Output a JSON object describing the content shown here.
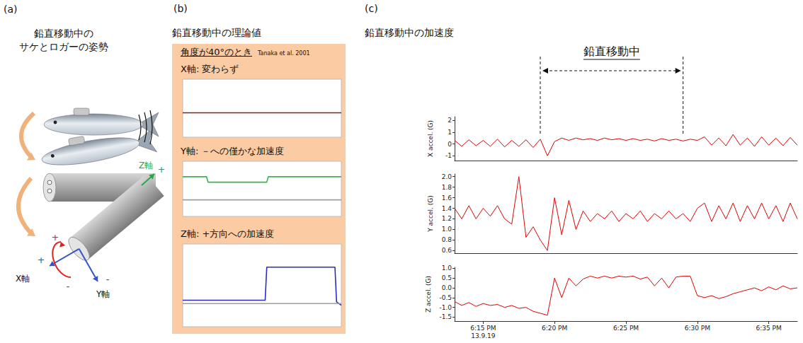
{
  "panels": {
    "a": {
      "letter": "(a)",
      "title_lines": [
        "鉛直移動中の",
        "サケとロガーの姿勢"
      ],
      "axis_labels": [
        {
          "text": "X軸",
          "sign": "+"
        },
        {
          "text": "Y軸",
          "sign": "-"
        },
        {
          "text": "Z軸",
          "sign": "+"
        }
      ],
      "rotation_signs": [
        "+",
        "-"
      ]
    },
    "b": {
      "letter": "(b)",
      "title": "鉛直移動中の理論値",
      "condition": "角度が40°のとき",
      "citation": "Tanaka et al. 2001"
    },
    "c": {
      "letter": "(c)"
    }
  },
  "chart_data": [
    {
      "type": "line",
      "title": "X軸: 変わらず",
      "x": [
        0,
        100
      ],
      "xlim": [
        0,
        100
      ],
      "ylim": [
        0,
        100
      ],
      "tick_labels": false,
      "series": [
        {
          "color": "#8b1a1a",
          "values": [
            42,
            42
          ]
        }
      ]
    },
    {
      "type": "line",
      "title": "Y軸: －への僅かな加速度",
      "x": [
        0,
        15,
        16,
        53,
        54,
        100
      ],
      "xlim": [
        0,
        100
      ],
      "ylim": [
        0,
        100
      ],
      "tick_labels": false,
      "series": [
        {
          "color": "#3cb44b",
          "values": [
            72,
            72,
            62,
            62,
            72,
            72
          ]
        },
        {
          "color": "#9e9e9e",
          "values": [
            30,
            30,
            30,
            30,
            30,
            30
          ]
        }
      ]
    },
    {
      "type": "line",
      "title": "Z軸: +方向への加速度",
      "x": [
        0,
        52,
        53,
        96,
        97,
        100
      ],
      "xlim": [
        0,
        100
      ],
      "ylim": [
        0,
        100
      ],
      "tick_labels": false,
      "series": [
        {
          "color": "#2b2bc0",
          "values": [
            32,
            32,
            72,
            72,
            30,
            26
          ]
        },
        {
          "color": "#9e9e9e",
          "values": [
            28,
            28,
            28,
            28,
            28,
            28
          ]
        }
      ]
    },
    {
      "type": "line",
      "title": "鉛直移動中の加速度",
      "x": [
        "2013-09-19 18:13:00",
        "2013-09-19 18:13:30",
        "2013-09-19 18:14:00",
        "2013-09-19 18:14:30",
        "2013-09-19 18:15:00",
        "2013-09-19 18:15:30",
        "2013-09-19 18:16:00",
        "2013-09-19 18:16:30",
        "2013-09-19 18:17:00",
        "2013-09-19 18:17:30",
        "2013-09-19 18:18:00",
        "2013-09-19 18:18:30",
        "2013-09-19 18:19:00",
        "2013-09-19 18:19:30",
        "2013-09-19 18:20:00",
        "2013-09-19 18:20:30",
        "2013-09-19 18:21:00",
        "2013-09-19 18:21:30",
        "2013-09-19 18:22:00",
        "2013-09-19 18:22:30",
        "2013-09-19 18:23:00",
        "2013-09-19 18:23:30",
        "2013-09-19 18:24:00",
        "2013-09-19 18:24:30",
        "2013-09-19 18:25:00",
        "2013-09-19 18:25:30",
        "2013-09-19 18:26:00",
        "2013-09-19 18:26:30",
        "2013-09-19 18:27:00",
        "2013-09-19 18:27:30",
        "2013-09-19 18:28:00",
        "2013-09-19 18:28:30",
        "2013-09-19 18:29:00",
        "2013-09-19 18:29:30",
        "2013-09-19 18:30:00",
        "2013-09-19 18:30:30",
        "2013-09-19 18:31:00",
        "2013-09-19 18:31:30",
        "2013-09-19 18:32:00",
        "2013-09-19 18:32:30",
        "2013-09-19 18:33:00",
        "2013-09-19 18:33:30",
        "2013-09-19 18:34:00",
        "2013-09-19 18:34:30",
        "2013-09-19 18:35:00",
        "2013-09-19 18:35:30",
        "2013-09-19 18:36:00",
        "2013-09-19 18:36:30",
        "2013-09-19 18:37:00"
      ],
      "xlim": [
        "2013-09-19 18:13:00",
        "2013-09-19 18:37:00"
      ],
      "xticks": [
        {
          "value": "2013-09-19 18:15:00",
          "label": "6:15 PM\n13.9.19"
        },
        {
          "value": "2013-09-19 18:20:00",
          "label": "6:20 PM"
        },
        {
          "value": "2013-09-19 18:25:00",
          "label": "6:25 PM"
        },
        {
          "value": "2013-09-19 18:30:00",
          "label": "6:30 PM"
        },
        {
          "value": "2013-09-19 18:35:00",
          "label": "6:35 PM"
        }
      ],
      "annotation": {
        "text": "鉛直移動中",
        "x": [
          "2013-09-19 18:19:00",
          "2013-09-19 18:29:00"
        ]
      },
      "series": [
        {
          "ylabel": "X accel. (G)",
          "color": "#e00000",
          "ylim": [
            -1.4,
            2.3
          ],
          "yticks": [
            -1,
            0,
            1,
            2
          ],
          "values": [
            0.3,
            -0.2,
            0.35,
            -0.15,
            0.3,
            -0.2,
            0.4,
            -0.25,
            0.3,
            -0.2,
            0.35,
            -0.3,
            0.4,
            -1.0,
            0.2,
            0.5,
            0.3,
            0.5,
            0.35,
            0.45,
            0.3,
            0.5,
            0.35,
            0.45,
            0.3,
            0.45,
            0.3,
            0.4,
            0.25,
            0.45,
            0.3,
            0.4,
            0.25,
            0.4,
            0.3,
            0.6,
            -0.1,
            0.5,
            -0.15,
            0.8,
            -0.1,
            0.5,
            -0.2,
            0.6,
            -0.1,
            0.5,
            -0.15,
            0.55,
            -0.1
          ]
        },
        {
          "ylabel": "Y accel. (G)",
          "color": "#e00000",
          "ylim": [
            0.55,
            2.05
          ],
          "yticks": [
            0.6,
            0.8,
            {
              "value": 1,
              "label": "1.0"
            },
            1.2,
            1.4,
            1.6,
            1.8,
            {
              "value": 2,
              "label": "2.0"
            }
          ],
          "values": [
            1.4,
            1.2,
            1.45,
            1.2,
            1.4,
            1.25,
            1.45,
            1.2,
            1.1,
            2.0,
            0.85,
            1.05,
            0.8,
            0.6,
            1.6,
            0.9,
            1.55,
            1.0,
            1.35,
            1.15,
            1.3,
            1.2,
            1.35,
            1.15,
            1.3,
            1.2,
            1.35,
            1.15,
            1.3,
            1.2,
            1.35,
            1.2,
            1.3,
            1.15,
            1.4,
            1.5,
            1.15,
            1.45,
            1.2,
            1.5,
            1.15,
            1.45,
            1.2,
            1.5,
            1.2,
            1.45,
            1.15,
            1.5,
            1.2
          ]
        },
        {
          "ylabel": "Z accel. (G)",
          "color": "#e00000",
          "ylim": [
            -1.7,
            1.05
          ],
          "yticks": [
            {
              "value": 1,
              "label": "1.0"
            },
            0.5,
            {
              "value": 0,
              "label": "0.0"
            },
            -0.5,
            {
              "value": -1,
              "label": "-1.0"
            },
            -1.5
          ],
          "values": [
            -0.7,
            -0.9,
            -0.75,
            -0.95,
            -0.8,
            -0.9,
            -0.85,
            -1.0,
            -0.9,
            -1.05,
            -1.0,
            -1.2,
            -1.3,
            -1.4,
            0.5,
            -0.5,
            0.5,
            0.1,
            0.45,
            0.6,
            0.5,
            0.6,
            0.5,
            0.6,
            0.55,
            0.6,
            0.45,
            0.55,
            0.1,
            0.5,
            0.0,
            0.55,
            0.6,
            0.6,
            -0.4,
            -0.5,
            -0.4,
            -0.55,
            -0.45,
            -0.3,
            -0.2,
            -0.1,
            0.0,
            -0.15,
            0.05,
            -0.1,
            0.1,
            -0.05,
            0.0
          ]
        }
      ]
    }
  ]
}
